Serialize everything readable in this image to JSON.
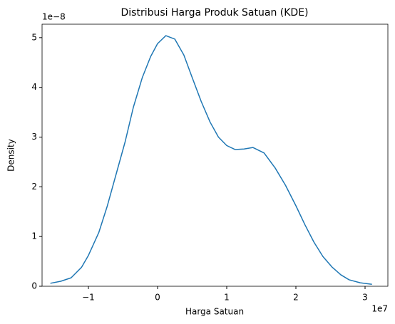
{
  "chart_data": {
    "type": "line",
    "title": "Distribusi Harga Produk Satuan (KDE)",
    "xlabel": "Harga Satuan",
    "ylabel": "Density",
    "x_offset_label": "1e7",
    "y_offset_label": "1e−8",
    "x": [
      -1.55,
      -1.4,
      -1.25,
      -1.1,
      -1.0,
      -0.85,
      -0.73,
      -0.6,
      -0.47,
      -0.35,
      -0.22,
      -0.1,
      0.0,
      0.12,
      0.25,
      0.38,
      0.5,
      0.63,
      0.76,
      0.88,
      1.0,
      1.12,
      1.25,
      1.38,
      1.54,
      1.7,
      1.85,
      2.0,
      2.13,
      2.26,
      2.39,
      2.52,
      2.65,
      2.77,
      2.93,
      3.1
    ],
    "series": [
      {
        "name": "Density",
        "color": "#1f77b4",
        "values": [
          0.06,
          0.1,
          0.17,
          0.38,
          0.62,
          1.08,
          1.6,
          2.25,
          2.9,
          3.6,
          4.2,
          4.62,
          4.88,
          5.04,
          4.97,
          4.65,
          4.2,
          3.72,
          3.3,
          3.0,
          2.83,
          2.75,
          2.76,
          2.79,
          2.68,
          2.38,
          2.03,
          1.62,
          1.24,
          0.89,
          0.6,
          0.39,
          0.23,
          0.13,
          0.07,
          0.04
        ]
      }
    ],
    "xlim": [
      -1.67,
      3.33
    ],
    "ylim": [
      0,
      5.27
    ],
    "xticks": [
      {
        "value": -1,
        "label": "−1"
      },
      0,
      1,
      2,
      3
    ],
    "yticks": [
      0,
      1,
      2,
      3,
      4,
      5
    ],
    "grid": false
  }
}
